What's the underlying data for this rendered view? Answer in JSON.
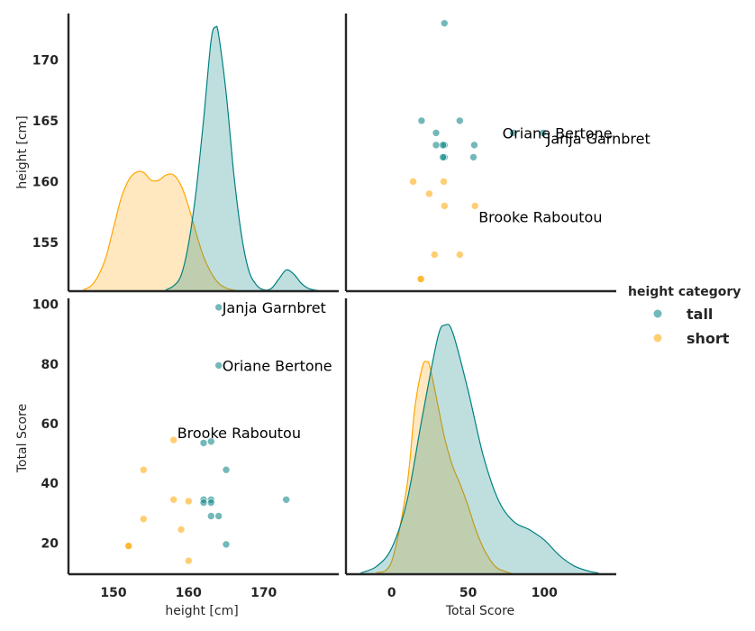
{
  "chart_data": {
    "type": "scatter",
    "variables": [
      "height [cm]",
      "Total Score"
    ],
    "axes": {
      "height [cm]": {
        "range": [
          144,
          180
        ],
        "ticks": [
          150,
          160,
          170
        ]
      },
      "Total Score": {
        "range": [
          -30,
          147
        ],
        "ticks": [
          0,
          50,
          100
        ]
      },
      "height_y": {
        "range": [
          151,
          173.8
        ],
        "ticks": [
          155,
          160,
          165,
          170
        ]
      },
      "score_y": {
        "range": [
          9.5,
          102
        ],
        "ticks": [
          20,
          40,
          60,
          80,
          100
        ]
      }
    },
    "grid": false,
    "legend": {
      "title": "height category",
      "placement": "right",
      "entries": [
        {
          "label": "tall",
          "color": "#008080"
        },
        {
          "label": "short",
          "color": "#FFA500"
        }
      ]
    },
    "points": [
      {
        "name": "Janja Garnbret",
        "height": 164,
        "score": 99,
        "category": "tall"
      },
      {
        "name": "Oriane Bertone",
        "height": 164,
        "score": 79.5,
        "category": "tall"
      },
      {
        "name": "",
        "height": 165,
        "score": 44.5,
        "category": "tall"
      },
      {
        "name": "",
        "height": 163,
        "score": 54,
        "category": "tall"
      },
      {
        "name": "",
        "height": 162,
        "score": 53.5,
        "category": "tall"
      },
      {
        "name": "",
        "height": 173,
        "score": 34.5,
        "category": "tall"
      },
      {
        "name": "",
        "height": 163,
        "score": 34.5,
        "category": "tall"
      },
      {
        "name": "",
        "height": 163,
        "score": 33.5,
        "category": "tall"
      },
      {
        "name": "",
        "height": 162,
        "score": 34.5,
        "category": "tall"
      },
      {
        "name": "",
        "height": 162,
        "score": 33.5,
        "category": "tall"
      },
      {
        "name": "",
        "height": 163,
        "score": 29,
        "category": "tall"
      },
      {
        "name": "",
        "height": 164,
        "score": 29,
        "category": "tall"
      },
      {
        "name": "",
        "height": 165,
        "score": 19.5,
        "category": "tall"
      },
      {
        "name": "Brooke Raboutou",
        "height": 158,
        "score": 54.5,
        "category": "short"
      },
      {
        "name": "",
        "height": 154,
        "score": 44.5,
        "category": "short"
      },
      {
        "name": "",
        "height": 158,
        "score": 34.5,
        "category": "short"
      },
      {
        "name": "",
        "height": 160,
        "score": 34,
        "category": "short"
      },
      {
        "name": "",
        "height": 154,
        "score": 28,
        "category": "short"
      },
      {
        "name": "",
        "height": 159,
        "score": 24.5,
        "category": "short"
      },
      {
        "name": "",
        "height": 152,
        "score": 19,
        "category": "short"
      },
      {
        "name": "",
        "height": 152,
        "score": 19,
        "category": "short"
      },
      {
        "name": "",
        "height": 160,
        "score": 14,
        "category": "short"
      }
    ],
    "annotations": [
      "Janja Garnbret",
      "Oriane Bertone",
      "Brooke Raboutou"
    ],
    "kde": {
      "height": {
        "tall": {
          "x": [
            157,
            158,
            159,
            160,
            161,
            162,
            163,
            163.6,
            164,
            165,
            166,
            167,
            168,
            169,
            170,
            171,
            172,
            173,
            174,
            175,
            176,
            177,
            178
          ],
          "y": [
            0.5,
            2,
            6,
            18,
            38,
            65,
            95,
            100,
            97,
            75,
            45,
            22,
            8,
            2.5,
            0.5,
            1,
            4.5,
            8,
            6.5,
            3,
            1,
            0.3,
            0
          ]
        },
        "short": {
          "x": [
            146,
            147,
            148,
            149,
            150,
            151,
            152,
            153,
            154,
            155,
            156,
            157,
            158,
            159,
            160,
            161,
            162,
            163,
            164,
            165,
            166,
            167
          ],
          "y": [
            0.5,
            2,
            6,
            13,
            24,
            35,
            42,
            45,
            45,
            42,
            42,
            44,
            44,
            40,
            32,
            22,
            13,
            7,
            3,
            1.2,
            0.4,
            0
          ]
        }
      },
      "score": {
        "tall": {
          "x": [
            -20,
            -10,
            0,
            10,
            20,
            30,
            35,
            40,
            50,
            60,
            70,
            80,
            90,
            100,
            110,
            120,
            130,
            135
          ],
          "y": [
            0.5,
            3,
            10,
            28,
            60,
            90,
            95,
            92,
            70,
            45,
            28,
            20,
            17,
            13,
            7,
            3,
            1,
            0.5
          ]
        },
        "short": {
          "x": [
            -10,
            0,
            10,
            15,
            20,
            23,
            25,
            30,
            35,
            40,
            45,
            50,
            55,
            60,
            65,
            70,
            80
          ],
          "y": [
            0.5,
            5,
            34,
            63,
            79,
            81,
            79,
            65,
            51,
            41,
            34,
            26,
            17,
            10,
            5,
            2,
            0
          ]
        }
      }
    }
  }
}
